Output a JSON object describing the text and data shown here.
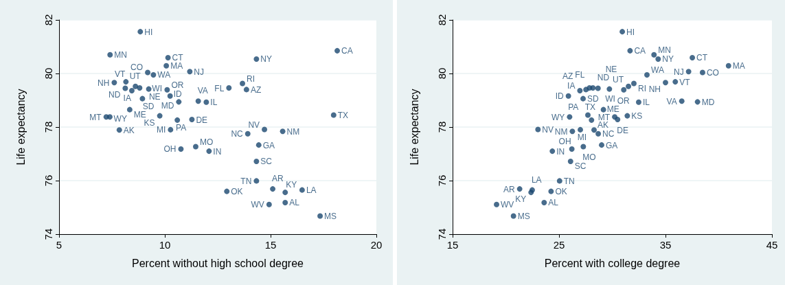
{
  "chart_data": [
    {
      "type": "scatter",
      "xlabel": "Percent without high school degree",
      "ylabel": "Life expectancy",
      "color": "#1a476f",
      "marker": "circle",
      "grid": "y",
      "xlim": [
        5,
        20
      ],
      "xticks": [
        5,
        10,
        15,
        20
      ],
      "ylim": [
        74,
        82
      ],
      "yticks": [
        74,
        76,
        78,
        80,
        82
      ],
      "value_labels": [
        "HI",
        "MN",
        "CT",
        "MA",
        "NJ",
        "CO",
        "WA",
        "NH",
        "VT",
        "ND",
        "IA",
        "UT",
        "WI",
        "NE",
        "OR",
        "ID",
        "SD",
        "MD",
        "VA",
        "IL",
        "ME",
        "MT",
        "WY",
        "KS",
        "PA",
        "DE",
        "AK",
        "MI",
        "OH",
        "MO",
        "IN",
        "CA",
        "NY",
        "RI",
        "FL",
        "AZ",
        "TX",
        "NV",
        "NM",
        "NC",
        "GA",
        "SC",
        "TN",
        "OK",
        "AR",
        "KY",
        "LA",
        "WV",
        "AL",
        "MS"
      ],
      "x": [
        8.84,
        7.41,
        10.15,
        10.07,
        11.18,
        9.19,
        9.46,
        7.61,
        8.16,
        8.13,
        8.44,
        8.61,
        8.81,
        9.24,
        10.11,
        10.25,
        8.94,
        10.66,
        11.58,
        11.96,
        8.34,
        7.23,
        7.4,
        9.76,
        10.59,
        11.28,
        7.85,
        10.27,
        10.76,
        11.46,
        12.09,
        18.15,
        14.33,
        13.67,
        13.03,
        13.86,
        17.98,
        14.71,
        15.57,
        13.92,
        14.44,
        14.33,
        14.33,
        12.93,
        15.1,
        15.69,
        16.49,
        14.93,
        15.69,
        17.34
      ],
      "values": [
        81.56,
        80.7,
        80.59,
        80.29,
        80.07,
        80.04,
        79.95,
        79.66,
        79.69,
        79.45,
        79.36,
        79.52,
        79.46,
        79.42,
        79.39,
        79.16,
        79.06,
        78.94,
        78.97,
        78.93,
        78.65,
        78.38,
        78.38,
        78.42,
        78.26,
        78.28,
        77.89,
        77.9,
        77.18,
        77.27,
        77.1,
        80.85,
        80.54,
        79.63,
        79.46,
        79.4,
        78.45,
        77.91,
        77.84,
        77.75,
        77.33,
        76.72,
        75.99,
        75.6,
        75.69,
        75.56,
        75.65,
        75.11,
        75.18,
        74.68
      ]
    },
    {
      "type": "scatter",
      "xlabel": "Percent with college degree",
      "ylabel": "Life expectancy",
      "color": "#1a476f",
      "marker": "circle",
      "grid": "y",
      "xlim": [
        15,
        45
      ],
      "xticks": [
        15,
        25,
        35,
        45
      ],
      "ylim": [
        74,
        82
      ],
      "yticks": [
        74,
        76,
        78,
        80,
        82
      ],
      "value_labels": [
        "HI",
        "MN",
        "CT",
        "MA",
        "NJ",
        "CO",
        "WA",
        "NH",
        "VT",
        "ND",
        "IA",
        "UT",
        "WI",
        "NE",
        "OR",
        "ID",
        "SD",
        "MD",
        "VA",
        "IL",
        "ME",
        "MT",
        "WY",
        "KS",
        "PA",
        "DE",
        "AK",
        "MI",
        "OH",
        "MO",
        "IN",
        "CA",
        "NY",
        "RI",
        "FL",
        "AZ",
        "TX",
        "NV",
        "NM",
        "NC",
        "GA",
        "SC",
        "TN",
        "OK",
        "AR",
        "KY",
        "LA",
        "WV",
        "AL",
        "MS"
      ],
      "x": [
        30.94,
        33.92,
        37.52,
        40.92,
        37.17,
        38.48,
        33.26,
        35.0,
        35.92,
        28.66,
        26.96,
        31.52,
        28.18,
        29.73,
        31.08,
        25.88,
        27.26,
        38.01,
        36.53,
        32.48,
        29.17,
        30.23,
        25.99,
        31.41,
        28.05,
        30.5,
        28.29,
        27.0,
        26.2,
        27.28,
        24.37,
        31.67,
        34.31,
        32.03,
        27.86,
        27.53,
        27.71,
        23.02,
        26.25,
        28.68,
        29.0,
        26.08,
        25.05,
        24.25,
        21.3,
        22.37,
        22.48,
        19.13,
        23.6,
        20.72
      ],
      "values": [
        81.56,
        80.7,
        80.59,
        80.29,
        80.07,
        80.04,
        79.95,
        79.66,
        79.69,
        79.45,
        79.36,
        79.52,
        79.46,
        79.42,
        79.39,
        79.16,
        79.06,
        78.94,
        78.97,
        78.93,
        78.65,
        78.38,
        78.38,
        78.42,
        78.26,
        78.28,
        77.89,
        77.9,
        77.18,
        77.27,
        77.1,
        80.85,
        80.54,
        79.63,
        79.46,
        79.4,
        78.45,
        77.91,
        77.84,
        77.75,
        77.33,
        76.72,
        75.99,
        75.6,
        75.69,
        75.56,
        75.65,
        75.11,
        75.18,
        74.68
      ]
    }
  ]
}
